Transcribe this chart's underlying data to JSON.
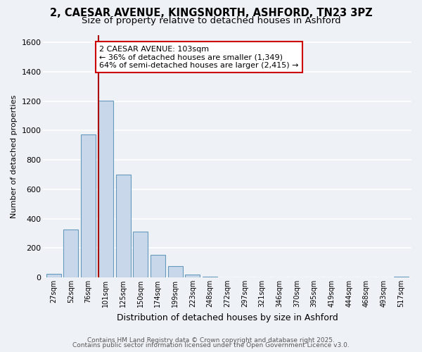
{
  "title": "2, CAESAR AVENUE, KINGSNORTH, ASHFORD, TN23 3PZ",
  "subtitle": "Size of property relative to detached houses in Ashford",
  "xlabel": "Distribution of detached houses by size in Ashford",
  "ylabel": "Number of detached properties",
  "bar_color": "#c8d8ea",
  "bar_edge_color": "#6699bb",
  "background_color": "#eef2f7",
  "grid_color": "#ffffff",
  "categories": [
    "27sqm",
    "52sqm",
    "76sqm",
    "101sqm",
    "125sqm",
    "150sqm",
    "174sqm",
    "199sqm",
    "223sqm",
    "248sqm",
    "272sqm",
    "297sqm",
    "321sqm",
    "346sqm",
    "370sqm",
    "395sqm",
    "419sqm",
    "444sqm",
    "468sqm",
    "493sqm",
    "517sqm"
  ],
  "values": [
    25,
    325,
    975,
    1205,
    700,
    310,
    155,
    75,
    20,
    5,
    0,
    0,
    0,
    0,
    0,
    0,
    0,
    0,
    0,
    0,
    5
  ],
  "ylim": [
    0,
    1650
  ],
  "yticks": [
    0,
    200,
    400,
    600,
    800,
    1000,
    1200,
    1400,
    1600
  ],
  "annotation_text_line1": "2 CAESAR AVENUE: 103sqm",
  "annotation_text_line2": "← 36% of detached houses are smaller (1,349)",
  "annotation_text_line3": "64% of semi-detached houses are larger (2,415) →",
  "footer_line1": "Contains HM Land Registry data © Crown copyright and database right 2025.",
  "footer_line2": "Contains public sector information licensed under the Open Government Licence v3.0.",
  "title_fontsize": 10.5,
  "subtitle_fontsize": 9.5,
  "annotation_fontsize": 8,
  "footer_fontsize": 6.5,
  "red_line_color": "#aa0000",
  "annotation_box_edge": "#cc0000"
}
